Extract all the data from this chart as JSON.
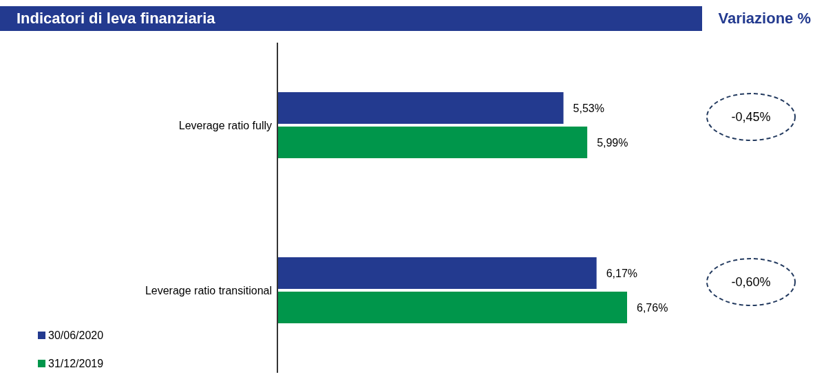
{
  "chart_data": {
    "type": "bar",
    "orientation": "horizontal",
    "title": "Indicatori di leva finanziaria",
    "subtitle": "Variazione %",
    "categories": [
      "Leverage ratio fully",
      "Leverage ratio transitional"
    ],
    "series": [
      {
        "name": "30/06/2020",
        "color": "#233a8f",
        "values": [
          5.53,
          6.17
        ],
        "value_labels": [
          "5,53%",
          "6,17%"
        ]
      },
      {
        "name": "31/12/2019",
        "color": "#00964b",
        "values": [
          5.99,
          6.76
        ],
        "value_labels": [
          "5,99%",
          "6,76%"
        ]
      }
    ],
    "annotations": [
      "-0,45%",
      "-0,60%"
    ],
    "legend": "bottom left",
    "grid": false
  }
}
